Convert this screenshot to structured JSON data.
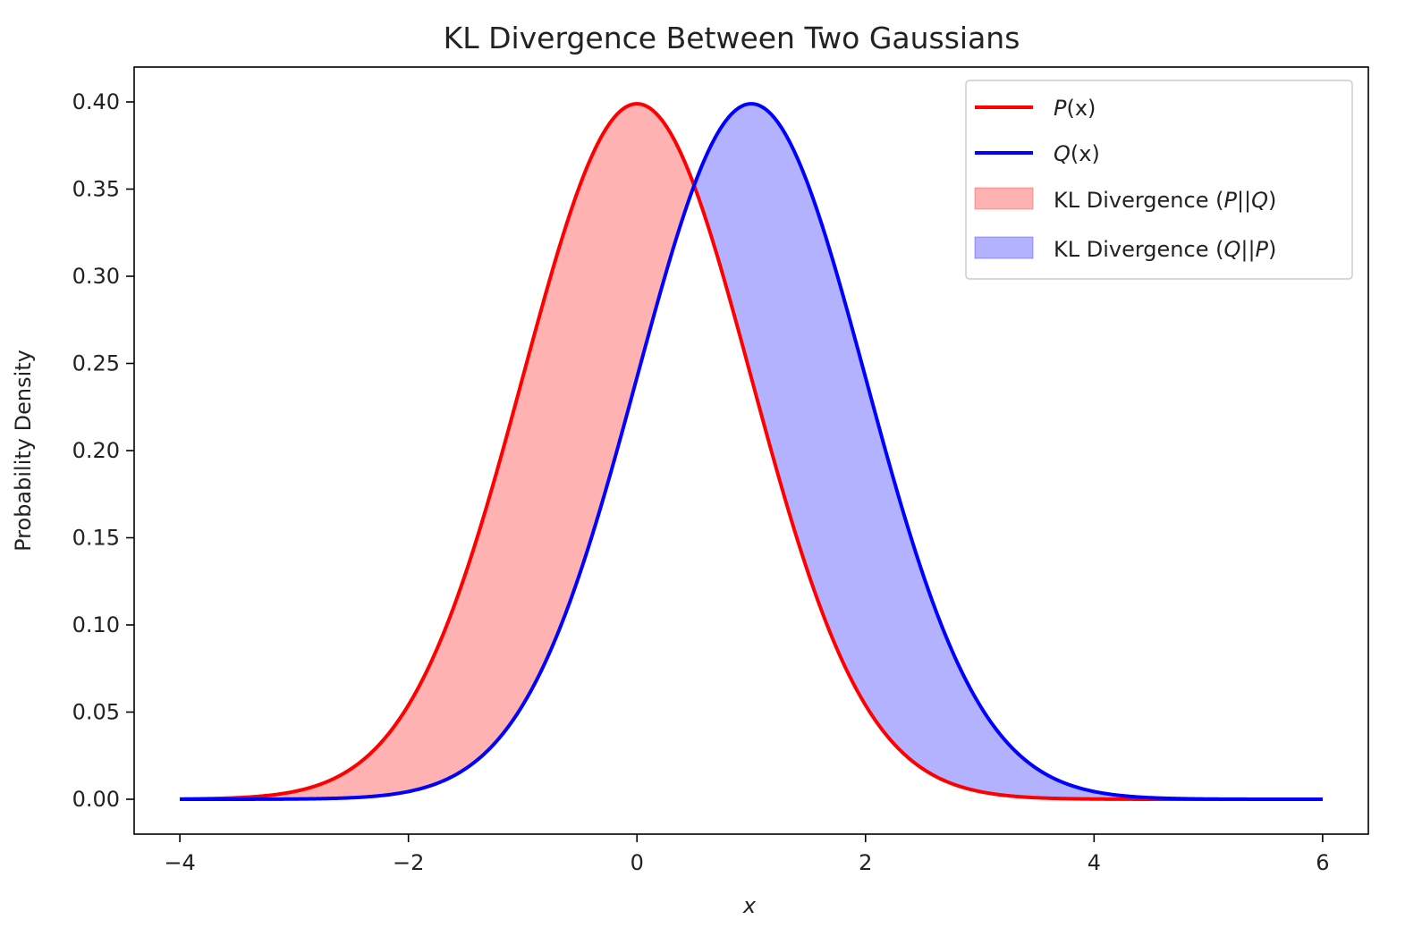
{
  "chart_data": {
    "type": "line",
    "title": "KL Divergence Between Two Gaussians",
    "xlabel": "x",
    "ylabel": "Probability Density",
    "xlim": [
      -4.4,
      6.4
    ],
    "ylim": [
      -0.02,
      0.42
    ],
    "xticks": [
      -4,
      -2,
      0,
      2,
      4,
      6
    ],
    "xtick_labels": [
      "−4",
      "−2",
      "0",
      "2",
      "4",
      "6"
    ],
    "yticks": [
      0.0,
      0.05,
      0.1,
      0.15,
      0.2,
      0.25,
      0.3,
      0.35,
      0.4
    ],
    "ytick_labels": [
      "0.00",
      "0.05",
      "0.10",
      "0.15",
      "0.20",
      "0.25",
      "0.30",
      "0.35",
      "0.40"
    ],
    "x_range": [
      -4,
      6
    ],
    "grid": false,
    "legend_position": "top-right",
    "series": [
      {
        "name": "P(x)",
        "color": "#ff0000",
        "distribution": "normal",
        "mean": 0,
        "std": 1,
        "x": [
          -4,
          -3,
          -2,
          -1.5,
          -1,
          -0.5,
          0,
          0.5,
          1,
          1.5,
          2,
          3,
          4,
          5,
          6
        ],
        "y": [
          0.0001,
          0.0044,
          0.054,
          0.1295,
          0.242,
          0.3521,
          0.3989,
          0.3521,
          0.242,
          0.1295,
          0.054,
          0.0044,
          0.0001,
          0.0,
          0.0
        ]
      },
      {
        "name": "Q(x)",
        "color": "#0000ff",
        "distribution": "normal",
        "mean": 1,
        "std": 1,
        "x": [
          -4,
          -3,
          -2,
          -1,
          -0.5,
          0,
          0.5,
          1,
          1.5,
          2,
          2.5,
          3,
          4,
          5,
          6
        ],
        "y": [
          0.0,
          0.0001,
          0.0044,
          0.054,
          0.1295,
          0.242,
          0.3521,
          0.3989,
          0.3521,
          0.242,
          0.1295,
          0.054,
          0.0044,
          0.0001,
          0.0
        ]
      }
    ],
    "fills": [
      {
        "name": "KL Divergence (P||Q)",
        "where": "P(x) > Q(x)",
        "color": "#ff0000",
        "alpha": 0.3
      },
      {
        "name": "KL Divergence (Q||P)",
        "where": "Q(x) > P(x)",
        "color": "#0000ff",
        "alpha": 0.3
      }
    ]
  },
  "legend": {
    "p_prefix": "P",
    "q_prefix": "Q",
    "x_suffix": "(x)",
    "kl_prefix": "KL Divergence (",
    "kl_suffix": ")",
    "pq_first": "P",
    "pq_sep": "||",
    "pq_second": "Q",
    "qp_first": "Q",
    "qp_sep": "||",
    "qp_second": "P"
  }
}
